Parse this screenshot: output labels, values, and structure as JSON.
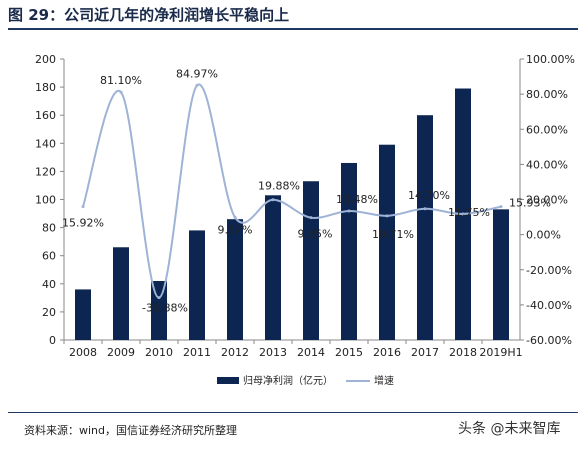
{
  "title": "图 29：公司近几年的净利润增长平稳向上",
  "source": "资料来源：wind，国信证券经济研究所整理",
  "watermark": "头条 @未来智库",
  "chart_data": {
    "type": "bar",
    "categories": [
      "2008",
      "2009",
      "2010",
      "2011",
      "2012",
      "2013",
      "2014",
      "2015",
      "2016",
      "2017",
      "2018",
      "2019H1"
    ],
    "series": [
      {
        "name": "归母净利润（亿元）",
        "type": "bar",
        "axis": "left",
        "color": "#0d2651",
        "values": [
          36,
          66,
          42,
          78,
          86,
          103,
          113,
          126,
          139,
          160,
          179,
          93
        ]
      },
      {
        "name": "增速",
        "type": "line",
        "axis": "right",
        "color": "#9fb3d6",
        "values": [
          15.92,
          81.1,
          -35.88,
          84.97,
          9.87,
          19.88,
          9.65,
          13.48,
          10.71,
          14.7,
          11.75,
          15.93
        ],
        "labels": [
          "15.92%",
          "81.10%",
          "-35.88%",
          "84.97%",
          "9.87%",
          "19.88%",
          "9.65%",
          "13.48%",
          "10.71%",
          "14.70%",
          "11.75%",
          "15.93%"
        ]
      }
    ],
    "left_axis": {
      "min": 0,
      "max": 200,
      "step": 20,
      "ticks": [
        "0",
        "20",
        "40",
        "60",
        "80",
        "100",
        "120",
        "140",
        "160",
        "180",
        "200"
      ]
    },
    "right_axis": {
      "min": -60,
      "max": 100,
      "step": 20,
      "ticks": [
        "-60.00%",
        "-40.00%",
        "-20.00%",
        "0.00%",
        "20.00%",
        "40.00%",
        "60.00%",
        "80.00%",
        "100.00%"
      ]
    },
    "legend_position": "bottom",
    "grid": false
  }
}
